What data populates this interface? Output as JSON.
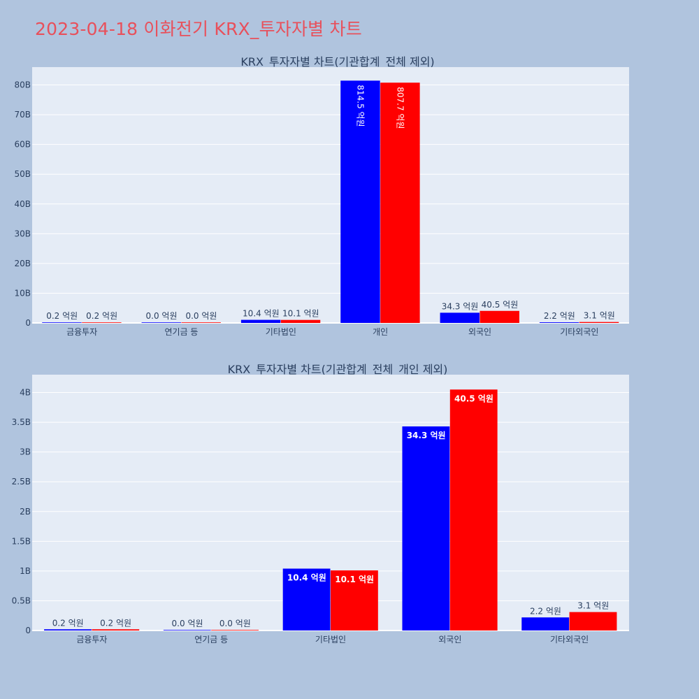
{
  "page_title": "2023-04-18 이화전기 KRX_투자자별 차트",
  "colors": {
    "page_bg": "#b0c4de",
    "plot_bg": "#e5ecf6",
    "title": "#e8505b",
    "series1": "#0000ff",
    "series2": "#ff0000",
    "text": "#2a3f5f"
  },
  "chart_data": [
    {
      "type": "bar",
      "title": "KRX_투자자별 차트(기관합계_전체 제외)",
      "categories": [
        "금융투자",
        "연기금 등",
        "기타법인",
        "개인",
        "외국인",
        "기타외국인"
      ],
      "series": [
        {
          "color": "#0000ff",
          "values": [
            20000000,
            0,
            1040000000,
            81450000000,
            3430000000,
            220000000
          ],
          "labels": [
            "0.2 억원",
            "0.0 억원",
            "10.4 억원",
            "814.5 억원",
            "34.3 억원",
            "2.2 억원"
          ]
        },
        {
          "color": "#ff0000",
          "values": [
            20000000,
            0,
            1010000000,
            80770000000,
            4050000000,
            310000000
          ],
          "labels": [
            "0.2 억원",
            "0.0 억원",
            "10.1 억원",
            "807.7 억원",
            "40.5 억원",
            "3.1 억원"
          ]
        }
      ],
      "ylim": [
        0,
        86000000000
      ],
      "yticks": [
        0,
        10000000000,
        20000000000,
        30000000000,
        40000000000,
        50000000000,
        60000000000,
        70000000000,
        80000000000
      ],
      "ytick_labels": [
        "0",
        "10B",
        "20B",
        "30B",
        "40B",
        "50B",
        "60B",
        "70B",
        "80B"
      ],
      "grid": true,
      "legend": "none"
    },
    {
      "type": "bar",
      "title": "KRX_투자자별 차트(기관합계_전체_개인 제외)",
      "categories": [
        "금융투자",
        "연기금 등",
        "기타법인",
        "외국인",
        "기타외국인"
      ],
      "series": [
        {
          "color": "#0000ff",
          "values": [
            20000000,
            0,
            1040000000,
            3430000000,
            220000000
          ],
          "labels": [
            "0.2 억원",
            "0.0 억원",
            "10.4 억원",
            "34.3 억원",
            "2.2 억원"
          ]
        },
        {
          "color": "#ff0000",
          "values": [
            20000000,
            0,
            1010000000,
            4050000000,
            310000000
          ],
          "labels": [
            "0.2 억원",
            "0.0 억원",
            "10.1 억원",
            "40.5 억원",
            "3.1 억원"
          ]
        }
      ],
      "ylim": [
        0,
        4300000000
      ],
      "yticks": [
        0,
        500000000,
        1000000000,
        1500000000,
        2000000000,
        2500000000,
        3000000000,
        3500000000,
        4000000000
      ],
      "ytick_labels": [
        "0",
        "0.5B",
        "1B",
        "1.5B",
        "2B",
        "2.5B",
        "3B",
        "3.5B",
        "4B"
      ],
      "grid": true,
      "legend": "none"
    }
  ]
}
